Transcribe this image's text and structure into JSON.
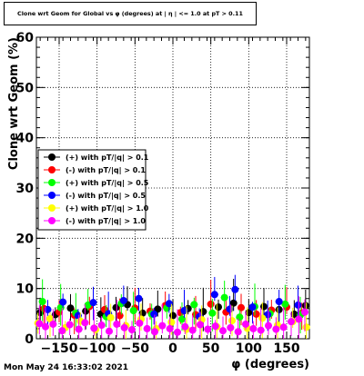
{
  "window": {
    "title": "Clone wrt Geom for Global vs φ (degrees) at | η | <= 1.0 at pT > 0.11",
    "timestamp": "Mon May 24 16:33:02 2021"
  },
  "colors": {
    "plus_pt_0_1": "#000000",
    "minus_pt_0_1": "#ff0000",
    "plus_pt_0_5": "#00ff00",
    "minus_pt_0_5": "#0000ff",
    "plus_pt_1_0": "#ffff00",
    "minus_pt_1_0": "#ff00ff"
  },
  "chart_data": {
    "type": "scatter",
    "title": "Clone wrt Geom for Global vs φ (degrees) at | η | <= 1.0 at pT > 0.11",
    "xlabel": "φ (degrees)",
    "ylabel": "Clone wrt Geom (%)",
    "xlim": [
      -180,
      180
    ],
    "ylim": [
      0,
      60
    ],
    "xticks": [
      -150,
      -100,
      -50,
      0,
      50,
      100,
      150
    ],
    "yticks": [
      0,
      10,
      20,
      30,
      40,
      50,
      60
    ],
    "grid": true,
    "legend_position": "left-middle",
    "series": [
      {
        "name": "(+) with pT/|q| > 0.1",
        "color": "#000000",
        "points": [
          [
            -175,
            5.2
          ],
          [
            -155,
            4.8
          ],
          [
            -135,
            6.1
          ],
          [
            -115,
            5.5
          ],
          [
            -95,
            4.9
          ],
          [
            -75,
            6.2
          ],
          [
            -60,
            6.8
          ],
          [
            -40,
            5.1
          ],
          [
            -20,
            5.9
          ],
          [
            0,
            4.6
          ],
          [
            20,
            6.0
          ],
          [
            40,
            5.4
          ],
          [
            60,
            6.3
          ],
          [
            80,
            7.1
          ],
          [
            100,
            5.2
          ],
          [
            120,
            6.4
          ],
          [
            140,
            5.8
          ],
          [
            160,
            4.9
          ],
          [
            175,
            6.6
          ]
        ]
      },
      {
        "name": "(-) with pT/|q| > 0.1",
        "color": "#ff0000",
        "points": [
          [
            -170,
            6.0
          ],
          [
            -150,
            5.3
          ],
          [
            -130,
            4.7
          ],
          [
            -110,
            6.4
          ],
          [
            -90,
            5.8
          ],
          [
            -70,
            4.6
          ],
          [
            -50,
            6.1
          ],
          [
            -30,
            5.5
          ],
          [
            -10,
            6.6
          ],
          [
            10,
            5.2
          ],
          [
            30,
            4.8
          ],
          [
            50,
            6.9
          ],
          [
            70,
            5.3
          ],
          [
            90,
            6.2
          ],
          [
            110,
            4.9
          ],
          [
            130,
            5.7
          ],
          [
            150,
            6.3
          ],
          [
            170,
            5.1
          ]
        ]
      },
      {
        "name": "(+) with pT/|q| > 0.5",
        "color": "#00ff00",
        "points": [
          [
            -172,
            7.4
          ],
          [
            -148,
            6.2
          ],
          [
            -128,
            5.1
          ],
          [
            -112,
            6.7
          ],
          [
            -88,
            4.4
          ],
          [
            -68,
            7.0
          ],
          [
            -52,
            5.6
          ],
          [
            -28,
            4.9
          ],
          [
            -8,
            6.1
          ],
          [
            12,
            3.9
          ],
          [
            28,
            6.8
          ],
          [
            52,
            5.1
          ],
          [
            68,
            8.2
          ],
          [
            88,
            4.3
          ],
          [
            108,
            6.4
          ],
          [
            128,
            5.0
          ],
          [
            148,
            6.9
          ],
          [
            168,
            4.7
          ]
        ]
      },
      {
        "name": "(-) with pT/|q| > 0.5",
        "color": "#0000ff",
        "points": [
          [
            -165,
            5.8
          ],
          [
            -145,
            7.3
          ],
          [
            -125,
            4.6
          ],
          [
            -105,
            7.2
          ],
          [
            -85,
            5.0
          ],
          [
            -65,
            7.6
          ],
          [
            -45,
            8.0
          ],
          [
            -25,
            4.9
          ],
          [
            -5,
            7.0
          ],
          [
            15,
            5.6
          ],
          [
            35,
            4.4
          ],
          [
            55,
            8.8
          ],
          [
            75,
            5.9
          ],
          [
            82,
            9.8
          ],
          [
            105,
            6.3
          ],
          [
            125,
            4.8
          ],
          [
            140,
            7.4
          ],
          [
            165,
            6.7
          ]
        ]
      },
      {
        "name": "(+) with pT/|q| > 1.0",
        "color": "#ffff00",
        "points": [
          [
            -178,
            3.1
          ],
          [
            -162,
            4.0
          ],
          [
            -142,
            2.2
          ],
          [
            -122,
            3.5
          ],
          [
            -102,
            1.8
          ],
          [
            -82,
            4.2
          ],
          [
            -62,
            2.6
          ],
          [
            -42,
            3.9
          ],
          [
            -22,
            2.0
          ],
          [
            -2,
            3.3
          ],
          [
            18,
            1.9
          ],
          [
            38,
            3.8
          ],
          [
            58,
            2.4
          ],
          [
            78,
            3.6
          ],
          [
            98,
            2.1
          ],
          [
            118,
            4.1
          ],
          [
            138,
            2.7
          ],
          [
            158,
            3.4
          ],
          [
            176,
            2.3
          ]
        ]
      },
      {
        "name": "(-) with pT/|q| > 1.0",
        "color": "#ff00ff",
        "points": [
          [
            -176,
            3.0
          ],
          [
            -168,
            2.4
          ],
          [
            -158,
            2.9
          ],
          [
            -146,
            1.6
          ],
          [
            -136,
            2.8
          ],
          [
            -124,
            1.9
          ],
          [
            -116,
            3.2
          ],
          [
            -104,
            2.1
          ],
          [
            -94,
            2.7
          ],
          [
            -84,
            1.5
          ],
          [
            -74,
            2.9
          ],
          [
            -64,
            2.2
          ],
          [
            -54,
            1.8
          ],
          [
            -44,
            3.1
          ],
          [
            -34,
            2.0
          ],
          [
            -24,
            1.4
          ],
          [
            -14,
            2.6
          ],
          [
            -4,
            2.0
          ],
          [
            6,
            1.3
          ],
          [
            16,
            2.4
          ],
          [
            26,
            1.7
          ],
          [
            36,
            2.8
          ],
          [
            46,
            1.9
          ],
          [
            56,
            2.5
          ],
          [
            66,
            1.6
          ],
          [
            76,
            2.2
          ],
          [
            86,
            1.4
          ],
          [
            96,
            2.9
          ],
          [
            106,
            2.0
          ],
          [
            116,
            1.7
          ],
          [
            126,
            2.6
          ],
          [
            136,
            1.9
          ],
          [
            146,
            2.3
          ],
          [
            156,
            3.4
          ],
          [
            166,
            3.9
          ],
          [
            174,
            5.3
          ]
        ]
      }
    ]
  }
}
